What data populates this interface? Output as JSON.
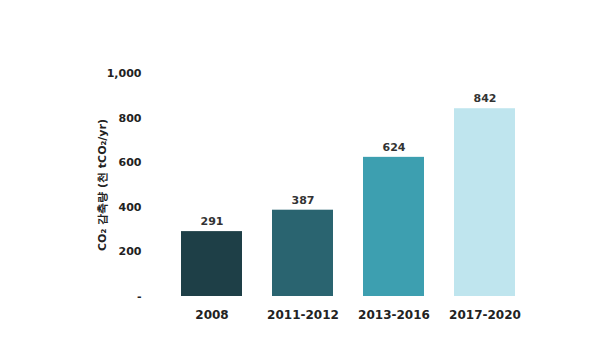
{
  "chart_data": {
    "type": "bar",
    "y_label": "CO₂ 감축량 (천 tCO₂/yr)",
    "categories": [
      "2008",
      "2011-2012",
      "2013-2016",
      "2017-2020"
    ],
    "values": [
      291,
      387,
      624,
      842
    ],
    "colors": [
      "#1e3f47",
      "#2a6470",
      "#3d9fb0",
      "#bfe5ee"
    ],
    "ylim": [
      0,
      1000
    ],
    "yticks": [
      {
        "value": 0,
        "label": "-"
      },
      200,
      400,
      600,
      800,
      {
        "value": 1000,
        "label": "1,000"
      }
    ],
    "grid": false,
    "data_labels": true
  }
}
